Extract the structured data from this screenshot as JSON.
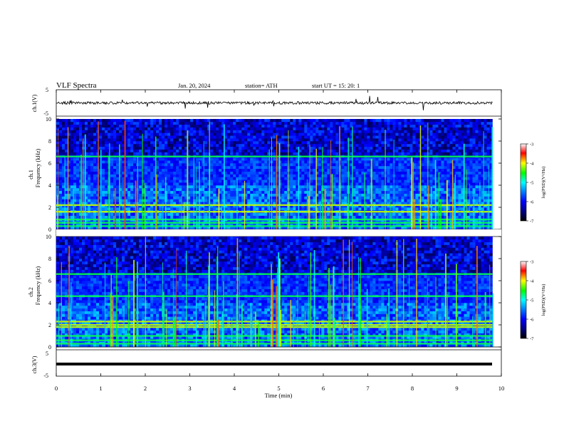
{
  "header": {
    "title": "VLF  Spectra",
    "date": "Jan. 20, 2024",
    "station": "station= ATH",
    "start_ut": "start  UT  =    15: 20: 1"
  },
  "chart_data": [
    {
      "type": "line",
      "id": "ch1-waveform",
      "ylabel": "ch.1(V)",
      "ylim": [
        -5,
        5
      ],
      "yticks": [
        "5",
        "-5"
      ],
      "xlim": [
        0,
        10
      ],
      "line_color": "#000000",
      "approx_level": 0,
      "approx_amplitude": 1.0,
      "x_extent_min": [
        0,
        9.8
      ]
    },
    {
      "type": "heatmap",
      "id": "ch1-spectrogram",
      "ylabel_line1": "ch.1",
      "ylabel_line2": "Frequency  (kHz)",
      "ylim": [
        0,
        10
      ],
      "yticks": [
        "0",
        "2",
        "4",
        "6",
        "8",
        "10"
      ],
      "xlim": [
        0,
        10
      ],
      "x_extent_min": [
        0,
        9.8
      ],
      "colorbar": {
        "label": "log(PSD)(V²/Hz)",
        "range": [
          -7,
          -3
        ],
        "ticks": [
          "-3",
          "-4",
          "-5",
          "-6",
          "-7"
        ]
      },
      "features": {
        "strong_bands_khz": [
          0.3,
          0.6,
          0.9,
          1.6,
          2.2,
          6.6
        ],
        "noisy_above_khz": 6.6
      }
    },
    {
      "type": "heatmap",
      "id": "ch2-spectrogram",
      "ylabel_line1": "ch.2",
      "ylabel_line2": "Frequency  (kHz)",
      "ylim": [
        0,
        10
      ],
      "yticks": [
        "0",
        "2",
        "4",
        "6",
        "8",
        "10"
      ],
      "xlim": [
        0,
        10
      ],
      "x_extent_min": [
        0,
        9.8
      ],
      "colorbar": {
        "label": "log(PSD)(V²/Hz)",
        "range": [
          -7,
          -3
        ],
        "ticks": [
          "-3",
          "-4",
          "-5",
          "-6",
          "-7"
        ]
      },
      "features": {
        "strong_bands_khz": [
          0.3,
          0.6,
          1.0,
          1.8,
          2.0,
          2.3,
          4.6,
          6.6
        ],
        "noisy_above_khz": 6.6
      }
    },
    {
      "type": "line",
      "id": "ch3-waveform",
      "ylabel": "ch.3(V)",
      "ylim": [
        -5,
        5
      ],
      "yticks": [
        "5",
        "-5"
      ],
      "xlim": [
        0,
        10
      ],
      "line_color": "#000000",
      "approx_level": 0,
      "x_extent_min": [
        0,
        9.8
      ]
    }
  ],
  "x_axis": {
    "label": "Time  (min)",
    "ticks": [
      "0",
      "1",
      "2",
      "3",
      "4",
      "5",
      "6",
      "7",
      "8",
      "9",
      "10"
    ]
  }
}
